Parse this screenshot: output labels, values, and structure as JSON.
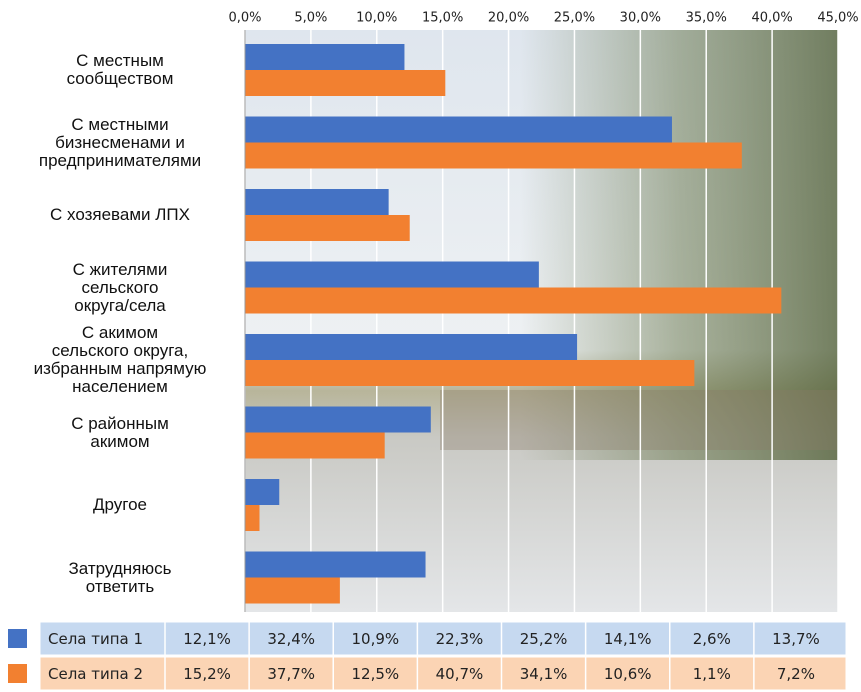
{
  "chart_data": {
    "type": "bar",
    "orientation": "horizontal",
    "categories": [
      "С местным\nсообществом",
      "С местными\nбизнесменами и\nпредпринимателями",
      "С хозяевами ЛПХ",
      "С жителями\nсельского\nокруга/села",
      "С акимом\nсельского округа,\nизбранным напрямую\nнаселением",
      "С районным\nакимом",
      "Другое",
      "Затрудняюсь\nответить"
    ],
    "series": [
      {
        "name": "Села типа 1",
        "color": "#4472c4",
        "values": [
          12.1,
          32.4,
          10.9,
          22.3,
          25.2,
          14.1,
          2.6,
          13.7
        ],
        "value_labels": [
          "12,1%",
          "32,4%",
          "10,9%",
          "22,3%",
          "25,2%",
          "14,1%",
          "2,6%",
          "13,7%"
        ]
      },
      {
        "name": "Села типа 2",
        "color": "#f28030",
        "values": [
          15.2,
          37.7,
          12.5,
          40.7,
          34.1,
          10.6,
          1.1,
          7.2
        ],
        "value_labels": [
          "15,2%",
          "37,7%",
          "12,5%",
          "40,7%",
          "34,1%",
          "10,6%",
          "1,1%",
          "7,2%"
        ]
      }
    ],
    "xlim": [
      0,
      45
    ],
    "xticks": [
      {
        "value": 0,
        "label": "0,0%"
      },
      {
        "value": 5,
        "label": "5,0%"
      },
      {
        "value": 10,
        "label": "10,0%"
      },
      {
        "value": 15,
        "label": "15,0%"
      },
      {
        "value": 20,
        "label": "20,0%"
      },
      {
        "value": 25,
        "label": "25,0%"
      },
      {
        "value": 30,
        "label": "30,0%"
      },
      {
        "value": 35,
        "label": "35,0%"
      },
      {
        "value": 40,
        "label": "40,0%"
      },
      {
        "value": 45,
        "label": "45,0%"
      }
    ],
    "grid": true
  }
}
